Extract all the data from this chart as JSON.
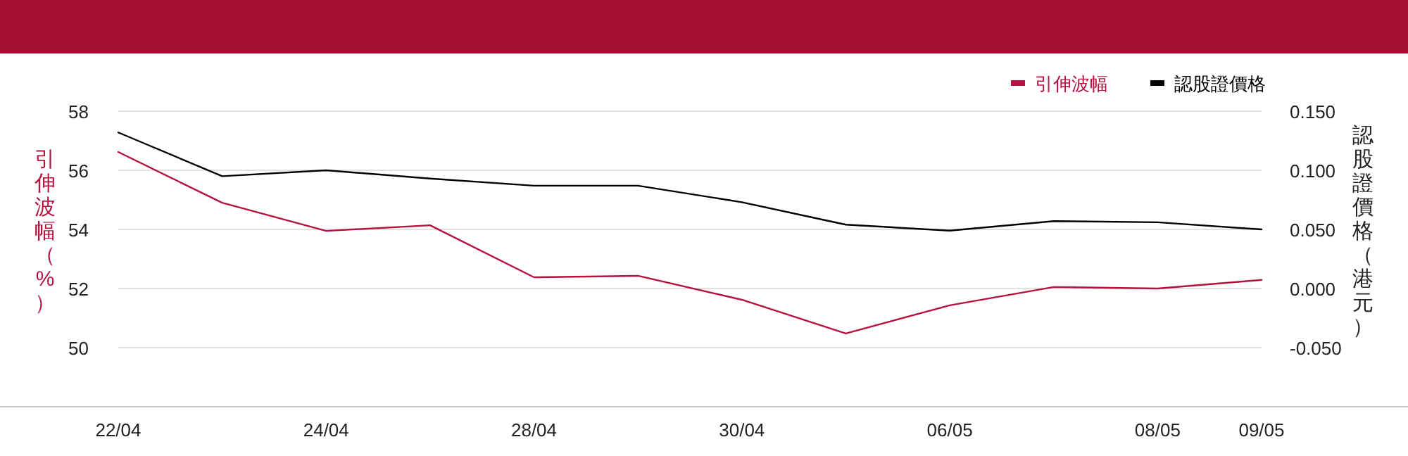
{
  "chart_data": {
    "type": "line",
    "categories": [
      "22/04",
      null,
      "24/04",
      null,
      "28/04",
      null,
      "30/04",
      null,
      "06/05",
      null,
      "08/05",
      "09/05"
    ],
    "series": [
      {
        "name": "引伸波幅",
        "color": "#b5123f",
        "values": [
          56.62,
          54.9,
          53.95,
          54.14,
          52.38,
          52.43,
          51.62,
          50.48,
          51.43,
          52.05,
          52.0,
          52.29
        ]
      },
      {
        "name": "認股證價格",
        "color": "#000000",
        "axis": "y2",
        "values": [
          0.132,
          0.095,
          0.1,
          0.093,
          0.087,
          0.087,
          0.073,
          0.054,
          0.049,
          0.057,
          0.056,
          0.05
        ]
      }
    ],
    "ylabel": "引伸波幅（%）",
    "y2label": "認股證價格（港元）",
    "ylim": [
      48,
      58
    ],
    "yticks": [
      50,
      52,
      54,
      56,
      58
    ],
    "y2lim": [
      -0.1,
      0.15
    ],
    "y2ticks": [
      {
        "value": -0.05,
        "label": "-0.050"
      },
      {
        "value": 0,
        "label": "0.000"
      },
      {
        "value": 0.05,
        "label": "0.050"
      },
      {
        "value": 0.1,
        "label": "0.100"
      },
      {
        "value": 0.15,
        "label": "0.150"
      }
    ],
    "grid": "y",
    "legend": "top right"
  }
}
